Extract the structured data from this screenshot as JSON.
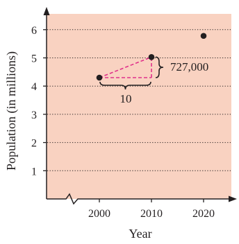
{
  "chart_data": {
    "type": "scatter",
    "xlabel": "Year",
    "ylabel": "Population (in millions)",
    "xlim": [
      1990,
      2025
    ],
    "ylim": [
      0,
      6.5
    ],
    "x_ticks": [
      2000,
      2010,
      2020
    ],
    "y_ticks": [
      1,
      2,
      3,
      4,
      5,
      6
    ],
    "x_tick_labels": [
      "2000",
      "2010",
      "2020"
    ],
    "y_tick_labels": [
      "1",
      "2",
      "3",
      "4",
      "5",
      "6"
    ],
    "x_axis_break": true,
    "grid": "horizontal dotted",
    "points": [
      {
        "x": 2000,
        "y": 4.3
      },
      {
        "x": 2010,
        "y": 5.03
      },
      {
        "x": 2020,
        "y": 5.78
      }
    ],
    "annotations": {
      "vertical_change_label": "727,000",
      "horizontal_change_label": "10"
    },
    "colors": {
      "plot_background": "#f9d2c1",
      "points": "#231f20",
      "slope_triangle": "#e0318a",
      "grid": "#231f20"
    }
  }
}
